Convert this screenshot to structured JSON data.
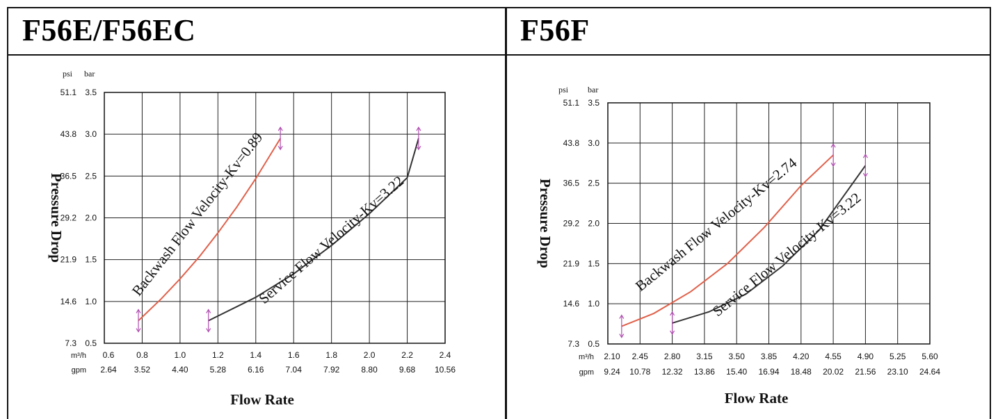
{
  "panels": [
    {
      "title": "F56E/F56EC",
      "chart_data": {
        "type": "line",
        "ylabel": "Pressure Drop",
        "xlabel": "Flow Rate",
        "y_units": [
          "psi",
          "bar"
        ],
        "x_units": [
          "m³/h",
          "gpm"
        ],
        "xlim": [
          0.6,
          2.4
        ],
        "ylim": [
          0.5,
          3.5
        ],
        "x_ticks": [
          "0.6",
          "0.8",
          "1.0",
          "1.2",
          "1.4",
          "1.6",
          "1.8",
          "2.0",
          "2.2",
          "2.4"
        ],
        "x_ticks_gpm": [
          "2.64",
          "3.52",
          "4.40",
          "5.28",
          "6.16",
          "7.04",
          "7.92",
          "8.80",
          "9.68",
          "10.56"
        ],
        "y_ticks_bar": [
          "0.5",
          "1.0",
          "1.5",
          "2.0",
          "2.5",
          "3.0",
          "3.5"
        ],
        "y_ticks_psi": [
          "7.3",
          "14.6",
          "21.9",
          "29.2",
          "36.5",
          "43.8",
          "51.1"
        ],
        "grid": true,
        "series": [
          {
            "name": "Backwash Flow Velocity-Kv=0.89",
            "color": "#e0604a",
            "x": [
              0.78,
              0.9,
              1.0,
              1.1,
              1.2,
              1.3,
              1.4,
              1.53
            ],
            "y": [
              0.77,
              1.03,
              1.27,
              1.53,
              1.82,
              2.13,
              2.47,
              2.95
            ]
          },
          {
            "name": "Service Flow Velocity-Kv=3.22",
            "color": "#333333",
            "x": [
              1.15,
              1.4,
              1.6,
              1.8,
              2.0,
              2.2,
              2.26
            ],
            "y": [
              0.77,
              1.05,
              1.33,
              1.67,
              2.05,
              2.48,
              2.95
            ]
          }
        ],
        "markers_x": [
          0.78,
          1.15,
          1.53,
          2.26
        ]
      }
    },
    {
      "title": "F56F",
      "chart_data": {
        "type": "line",
        "ylabel": "Pressure Drop",
        "xlabel": "Flow Rate",
        "y_units": [
          "psi",
          "bar"
        ],
        "x_units": [
          "m³/h",
          "gpm"
        ],
        "xlim": [
          2.1,
          5.6
        ],
        "ylim": [
          0.5,
          3.5
        ],
        "x_ticks": [
          "2.10",
          "2.45",
          "2.80",
          "3.15",
          "3.50",
          "3.85",
          "4.20",
          "4.55",
          "4.90",
          "5.25",
          "5.60"
        ],
        "x_ticks_gpm": [
          "9.24",
          "10.78",
          "12.32",
          "13.86",
          "15.40",
          "16.94",
          "18.48",
          "20.02",
          "21.56",
          "23.10",
          "24.64"
        ],
        "y_ticks_bar": [
          "0.5",
          "1.0",
          "1.5",
          "2.0",
          "2.5",
          "3.0",
          "3.5"
        ],
        "y_ticks_psi": [
          "7.3",
          "14.6",
          "21.9",
          "29.2",
          "36.5",
          "43.8",
          "51.1"
        ],
        "grid": true,
        "series": [
          {
            "name": "Backwash Flow Velocity-Kv=2.74",
            "color": "#e0604a",
            "x": [
              2.25,
              2.6,
              3.0,
              3.4,
              3.8,
              4.2,
              4.55
            ],
            "y": [
              0.72,
              0.88,
              1.15,
              1.5,
              1.95,
              2.47,
              2.85
            ]
          },
          {
            "name": "Service Flow Velocity-Kv=3.22",
            "color": "#333333",
            "x": [
              2.8,
              3.2,
              3.6,
              4.0,
              4.4,
              4.9
            ],
            "y": [
              0.76,
              0.9,
              1.12,
              1.47,
              1.92,
              2.72
            ]
          }
        ],
        "markers_x": [
          2.25,
          2.8,
          4.55,
          4.9
        ]
      }
    }
  ]
}
